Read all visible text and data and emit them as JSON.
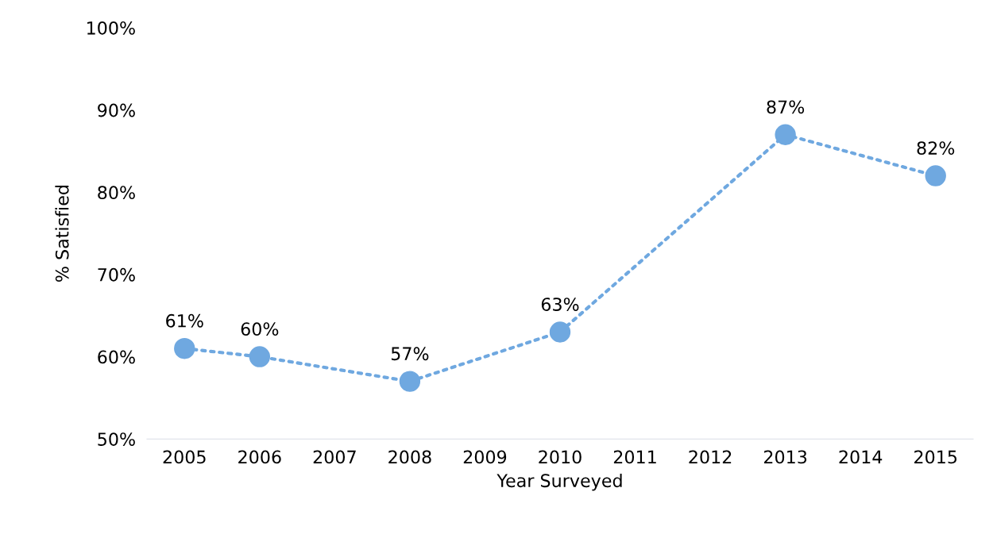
{
  "chart_data": {
    "type": "line",
    "xlabel": "Year Surveyed",
    "ylabel": "% Satisfied",
    "xlim": [
      2004.5,
      2015.5
    ],
    "xticks": [
      2005,
      2006,
      2007,
      2008,
      2009,
      2010,
      2011,
      2012,
      2013,
      2014,
      2015
    ],
    "ylim": [
      50,
      100
    ],
    "yticks": [
      {
        "value": 50,
        "label": "50%"
      },
      {
        "value": 60,
        "label": "60%"
      },
      {
        "value": 70,
        "label": "70%"
      },
      {
        "value": 80,
        "label": "80%"
      },
      {
        "value": 90,
        "label": "90%"
      },
      {
        "value": 100,
        "label": "100%"
      }
    ],
    "marker": "circle",
    "line_style": "dotted",
    "series": [
      {
        "color": "#6fa8e0",
        "x": [
          2005,
          2006,
          2008,
          2010,
          2013,
          2015
        ],
        "values": [
          61,
          60,
          57,
          63,
          87,
          82
        ],
        "value_labels": [
          "61%",
          "60%",
          "57%",
          "63%",
          "87%",
          "82%"
        ]
      }
    ]
  }
}
